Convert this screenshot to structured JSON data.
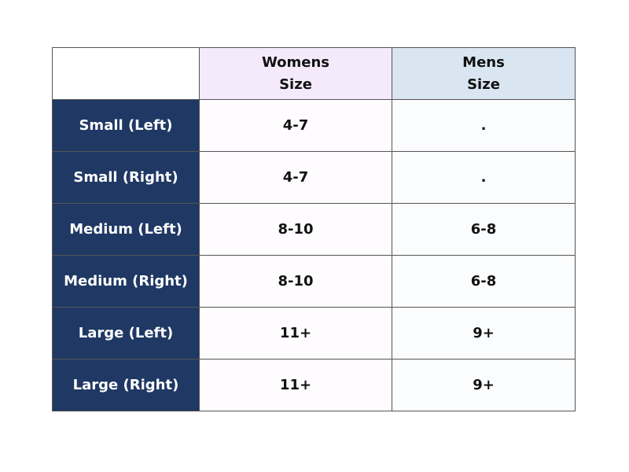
{
  "table": {
    "header": [
      [
        "Womens",
        "Size"
      ],
      [
        "Mens",
        "Size"
      ]
    ],
    "rows": [
      [
        "Small (Left)",
        "4-7",
        "."
      ],
      [
        "Small (Right)",
        "4-7",
        "."
      ],
      [
        "Medium (Left)",
        "8-10",
        "6-8"
      ],
      [
        "Medium (Right)",
        "8-10",
        "6-8"
      ],
      [
        "Large (Left)",
        "11+",
        "9+"
      ],
      [
        "Large (Right)",
        "11+",
        "9+"
      ]
    ]
  }
}
